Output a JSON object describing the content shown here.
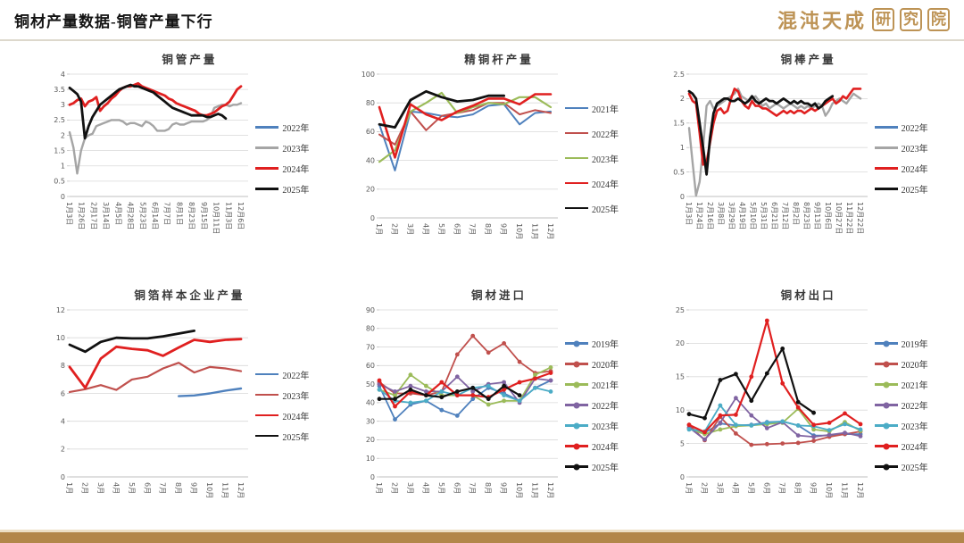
{
  "header": {
    "title": "铜材产量数据-铜管产量下行",
    "logo_main": "混沌天成",
    "logo_boxed_chars": [
      "研",
      "究",
      "院"
    ]
  },
  "colors": {
    "accent_gold": "#B2874A",
    "logo_gold": "#BD9355",
    "grid_line": "#D9D9D9",
    "axis_line": "#BFBFBF",
    "series_blue": "#4F81BD",
    "series_gray": "#A5A5A5",
    "series_brick": "#C0504D",
    "series_olive": "#9BBB59",
    "series_purple": "#8064A2",
    "series_teal": "#4BACC6",
    "series_red": "#E02020",
    "series_black": "#111111"
  },
  "chart_data": [
    {
      "type": "line",
      "title": "铜管产量",
      "ylim": [
        0,
        4
      ],
      "ystep": 0.5,
      "grid": true,
      "legend_position": "right",
      "x_label_rotation": 90,
      "markers": false,
      "categories": [
        "1月3日",
        "1月26日",
        "2月17日",
        "3月14日",
        "4月5日",
        "4月28日",
        "5月23日",
        "6月14日",
        "7月7日",
        "8月1日",
        "8月23日",
        "9月15日",
        "10月11日",
        "11月3日",
        "12月6日"
      ],
      "series": [
        {
          "name": "2022年",
          "color": "#4F81BD",
          "width": 2.2,
          "values": []
        },
        {
          "name": "2023年",
          "color": "#A5A5A5",
          "width": 2.4,
          "values": [
            2.1,
            1.6,
            0.75,
            1.5,
            1.9,
            2.0,
            2.05,
            2.3,
            2.35,
            2.4,
            2.45,
            2.5,
            2.5,
            2.5,
            2.45,
            2.35,
            2.4,
            2.4,
            2.35,
            2.3,
            2.45,
            2.4,
            2.3,
            2.15,
            2.15,
            2.15,
            2.2,
            2.35,
            2.4,
            2.35,
            2.35,
            2.4,
            2.45,
            2.45,
            2.45,
            2.45,
            2.5,
            2.6,
            2.9,
            2.95,
            3.0,
            3.0,
            2.95,
            3.0,
            3.0,
            3.05
          ]
        },
        {
          "name": "2024年",
          "color": "#E02020",
          "width": 2.8,
          "values": [
            3.0,
            3.05,
            3.15,
            3.2,
            2.95,
            3.1,
            3.15,
            3.25,
            2.8,
            2.95,
            3.05,
            3.2,
            3.3,
            3.45,
            3.55,
            3.6,
            3.6,
            3.65,
            3.7,
            3.6,
            3.55,
            3.5,
            3.45,
            3.4,
            3.35,
            3.3,
            3.2,
            3.15,
            3.05,
            3.0,
            2.95,
            2.9,
            2.85,
            2.8,
            2.7,
            2.65,
            2.65,
            2.7,
            2.75,
            2.85,
            2.95,
            3.0,
            3.1,
            3.3,
            3.5,
            3.6
          ]
        },
        {
          "name": "2025年",
          "color": "#111111",
          "width": 2.8,
          "values": [
            3.55,
            3.45,
            3.35,
            3.1,
            1.9,
            2.3,
            2.6,
            2.8,
            3.0,
            3.1,
            3.2,
            3.3,
            3.4,
            3.5,
            3.55,
            3.6,
            3.65,
            3.6,
            3.6,
            3.55,
            3.5,
            3.45,
            3.4,
            3.3,
            3.2,
            3.1,
            3.0,
            2.9,
            2.85,
            2.8,
            2.75,
            2.7,
            2.65,
            2.65,
            2.65,
            2.65,
            2.6,
            2.6,
            2.65,
            2.7,
            2.65,
            2.55,
            null,
            null,
            null,
            null
          ]
        }
      ]
    },
    {
      "type": "line",
      "title": "精铜杆产量",
      "ylim": [
        0,
        100
      ],
      "ystep": 20,
      "grid": true,
      "legend_position": "right",
      "x_label_rotation": 90,
      "markers": false,
      "categories": [
        "1月",
        "2月",
        "3月",
        "4月",
        "5月",
        "6月",
        "7月",
        "8月",
        "9月",
        "10月",
        "11月",
        "12月"
      ],
      "series": [
        {
          "name": "2021年",
          "color": "#4F81BD",
          "width": 2.0,
          "values": [
            65,
            33,
            74,
            73,
            71,
            70,
            72,
            78,
            79,
            65,
            73,
            74
          ]
        },
        {
          "name": "2022年",
          "color": "#C0504D",
          "width": 2.0,
          "values": [
            58,
            51,
            74,
            61,
            71,
            73,
            75,
            80,
            80,
            72,
            75,
            73
          ]
        },
        {
          "name": "2023年",
          "color": "#9BBB59",
          "width": 2.2,
          "values": [
            39,
            47,
            74,
            80,
            87,
            73,
            77,
            80,
            79,
            84,
            84,
            77
          ]
        },
        {
          "name": "2024年",
          "color": "#E02020",
          "width": 2.6,
          "values": [
            77,
            42,
            79,
            72,
            68,
            74,
            78,
            83,
            83,
            79,
            86,
            86
          ]
        },
        {
          "name": "2025年",
          "color": "#111111",
          "width": 2.8,
          "values": [
            65,
            63,
            82,
            88,
            84,
            81,
            82,
            85,
            85,
            null,
            null,
            null
          ]
        }
      ]
    },
    {
      "type": "line",
      "title": "铜棒产量",
      "ylim": [
        0,
        2.5
      ],
      "ystep": 0.5,
      "grid": true,
      "legend_position": "right",
      "x_label_rotation": 90,
      "markers": false,
      "categories": [
        "1月3日",
        "1月24日",
        "2月16日",
        "3月8日",
        "3月29日",
        "4月19日",
        "5月10日",
        "5月31日",
        "6月21日",
        "7月12日",
        "8月2日",
        "8月23日",
        "9月13日",
        "10月6日",
        "10月27日",
        "11月22日",
        "12月22日"
      ],
      "series": [
        {
          "name": "2022年",
          "color": "#4F81BD",
          "width": 2.2,
          "values": []
        },
        {
          "name": "2023年",
          "color": "#A5A5A5",
          "width": 2.4,
          "values": [
            1.4,
            0.7,
            0.02,
            0.3,
            1.0,
            1.85,
            1.95,
            1.8,
            1.85,
            1.9,
            1.95,
            2.0,
            2.05,
            2.1,
            2.2,
            2.05,
            2.0,
            1.95,
            2.0,
            2.05,
            1.95,
            1.85,
            1.9,
            1.8,
            1.85,
            1.9,
            1.85,
            1.8,
            1.85,
            1.9,
            1.85,
            1.8,
            1.85,
            1.8,
            1.85,
            1.8,
            1.85,
            1.9,
            1.85,
            1.65,
            1.75,
            1.9,
            1.95,
            2.0,
            1.95,
            1.9,
            2.0,
            2.1,
            2.05,
            2.0
          ]
        },
        {
          "name": "2024年",
          "color": "#E02020",
          "width": 2.6,
          "values": [
            2.1,
            1.95,
            1.9,
            1.3,
            0.65,
            0.7,
            1.1,
            1.5,
            1.75,
            1.8,
            1.7,
            1.75,
            2.0,
            2.2,
            2.15,
            1.95,
            1.85,
            1.8,
            1.95,
            1.85,
            1.85,
            1.8,
            1.8,
            1.75,
            1.7,
            1.65,
            1.7,
            1.75,
            1.7,
            1.75,
            1.7,
            1.75,
            1.75,
            1.7,
            1.75,
            1.8,
            1.75,
            1.8,
            1.85,
            1.9,
            1.95,
            2.0,
            1.9,
            1.95,
            2.05,
            2.0,
            2.1,
            2.2,
            2.2,
            2.2
          ]
        },
        {
          "name": "2025年",
          "color": "#111111",
          "width": 2.8,
          "values": [
            2.15,
            2.1,
            2.0,
            1.5,
            1.0,
            0.45,
            1.2,
            1.7,
            1.9,
            1.95,
            2.0,
            2.0,
            1.95,
            1.95,
            2.0,
            1.95,
            1.9,
            1.95,
            2.05,
            1.95,
            1.9,
            1.95,
            2.0,
            1.95,
            1.95,
            1.9,
            1.95,
            2.0,
            1.95,
            1.9,
            1.95,
            1.9,
            1.95,
            1.9,
            1.9,
            1.85,
            1.9,
            1.8,
            1.85,
            1.95,
            2.0,
            2.05,
            null,
            null,
            null,
            null,
            null,
            null,
            null,
            null
          ]
        }
      ]
    },
    {
      "type": "line",
      "title": "铜箔样本企业产量",
      "ylim": [
        0,
        12
      ],
      "ystep": 2,
      "grid": true,
      "legend_position": "right",
      "x_label_rotation": 90,
      "markers": false,
      "categories": [
        "1月",
        "2月",
        "3月",
        "4月",
        "5月",
        "6月",
        "7月",
        "8月",
        "9月",
        "10月",
        "11月",
        "12月"
      ],
      "series": [
        {
          "name": "2022年",
          "color": "#4F81BD",
          "width": 2.4,
          "values": [
            null,
            null,
            null,
            null,
            null,
            null,
            null,
            5.8,
            5.85,
            6.0,
            6.2,
            6.35
          ]
        },
        {
          "name": "2023年",
          "color": "#C0504D",
          "width": 2.2,
          "values": [
            6.1,
            6.3,
            6.6,
            6.25,
            7.0,
            7.2,
            7.8,
            8.2,
            7.5,
            7.9,
            7.8,
            7.6
          ]
        },
        {
          "name": "2024年",
          "color": "#E02020",
          "width": 2.8,
          "values": [
            7.9,
            6.4,
            8.5,
            9.35,
            9.2,
            9.1,
            8.7,
            9.3,
            9.85,
            9.7,
            9.85,
            9.9
          ]
        },
        {
          "name": "2025年",
          "color": "#111111",
          "width": 2.8,
          "values": [
            9.5,
            9.0,
            9.7,
            10.0,
            9.95,
            9.95,
            10.1,
            10.3,
            10.5,
            null,
            null,
            null
          ]
        }
      ]
    },
    {
      "type": "line",
      "title": "铜材进口",
      "ylim": [
        0,
        90
      ],
      "ystep": 10,
      "grid": true,
      "legend_position": "right",
      "x_label_rotation": 90,
      "markers": true,
      "categories": [
        "1月",
        "2月",
        "3月",
        "4月",
        "5月",
        "6月",
        "7月",
        "8月",
        "9月",
        "10月",
        "11月",
        "12月"
      ],
      "series": [
        {
          "name": "2019年",
          "color": "#4F81BD",
          "width": 1.8,
          "values": [
            49,
            31,
            39,
            41,
            36,
            33,
            42,
            48,
            45,
            41,
            48,
            52
          ]
        },
        {
          "name": "2020年",
          "color": "#C0504D",
          "width": 1.8,
          "values": [
            51,
            45,
            45,
            44,
            46,
            66,
            76,
            67,
            72,
            62,
            56,
            57
          ]
        },
        {
          "name": "2021年",
          "color": "#9BBB59",
          "width": 1.8,
          "values": [
            47,
            44,
            55,
            49,
            44,
            44,
            44,
            39,
            41,
            41,
            55,
            59
          ]
        },
        {
          "name": "2022年",
          "color": "#8064A2",
          "width": 1.8,
          "values": [
            50,
            46,
            49,
            46,
            46,
            54,
            46,
            50,
            51,
            40,
            53,
            52
          ]
        },
        {
          "name": "2023年",
          "color": "#4BACC6",
          "width": 1.8,
          "values": [
            47,
            41,
            40,
            41,
            46,
            44,
            48,
            49,
            44,
            41,
            48,
            46
          ]
        },
        {
          "name": "2024年",
          "color": "#E02020",
          "width": 2.2,
          "values": [
            52,
            38,
            46,
            44,
            51,
            44,
            44,
            43,
            47,
            51,
            53,
            56
          ]
        },
        {
          "name": "2025年",
          "color": "#111111",
          "width": 2.2,
          "values": [
            42,
            42,
            47,
            44,
            43,
            46,
            48,
            42,
            49,
            44,
            null,
            null
          ]
        }
      ]
    },
    {
      "type": "line",
      "title": "铜材出口",
      "ylim": [
        0,
        25
      ],
      "ystep": 5,
      "grid": true,
      "legend_position": "right",
      "x_label_rotation": 90,
      "markers": true,
      "categories": [
        "1月",
        "2月",
        "3月",
        "4月",
        "5月",
        "6月",
        "7月",
        "8月",
        "9月",
        "10月",
        "11月",
        "12月"
      ],
      "series": [
        {
          "name": "2019年",
          "color": "#4F81BD",
          "width": 1.8,
          "values": [
            7.3,
            6.6,
            8.0,
            7.7,
            7.8,
            8.2,
            8.3,
            7.7,
            6.2,
            6.2,
            6.4,
            6.4
          ]
        },
        {
          "name": "2020年",
          "color": "#C0504D",
          "width": 1.8,
          "values": [
            7.8,
            5.5,
            9.0,
            6.5,
            4.8,
            4.9,
            5.0,
            5.1,
            5.4,
            6.0,
            6.4,
            6.8
          ]
        },
        {
          "name": "2021年",
          "color": "#9BBB59",
          "width": 1.8,
          "values": [
            7.2,
            6.4,
            7.1,
            7.6,
            7.7,
            7.9,
            8.1,
            10.2,
            7.1,
            6.8,
            8.2,
            6.9
          ]
        },
        {
          "name": "2022年",
          "color": "#8064A2",
          "width": 1.8,
          "values": [
            7.4,
            5.6,
            8.1,
            11.8,
            9.2,
            7.3,
            8.2,
            6.2,
            6.0,
            6.3,
            6.6,
            6.1
          ]
        },
        {
          "name": "2023年",
          "color": "#4BACC6",
          "width": 1.8,
          "values": [
            7.1,
            6.8,
            10.7,
            7.8,
            7.7,
            8.1,
            8.3,
            7.7,
            7.6,
            7.0,
            7.9,
            7.1
          ]
        },
        {
          "name": "2024年",
          "color": "#E02020",
          "width": 2.2,
          "values": [
            7.8,
            6.7,
            9.2,
            9.3,
            15.0,
            23.4,
            14.0,
            10.4,
            7.8,
            8.1,
            9.5,
            7.9
          ]
        },
        {
          "name": "2025年",
          "color": "#111111",
          "width": 2.2,
          "values": [
            9.4,
            8.8,
            14.5,
            15.4,
            11.4,
            15.5,
            19.2,
            11.2,
            9.6,
            null,
            null,
            null
          ]
        }
      ]
    }
  ]
}
